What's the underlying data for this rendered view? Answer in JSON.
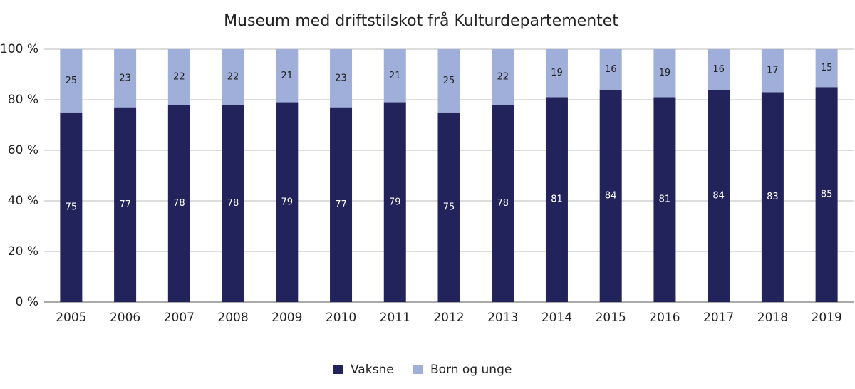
{
  "chart_data": {
    "type": "stacked-bar",
    "title": "Museum med driftstilskot frå Kulturdepartementet",
    "categories": [
      "2005",
      "2006",
      "2007",
      "2008",
      "2009",
      "2010",
      "2011",
      "2012",
      "2013",
      "2014",
      "2015",
      "2016",
      "2017",
      "2018",
      "2019"
    ],
    "series": [
      {
        "name": "Vaksne",
        "color": "#23235b",
        "values": [
          75,
          77,
          78,
          78,
          79,
          77,
          79,
          75,
          78,
          81,
          84,
          81,
          84,
          83,
          85
        ]
      },
      {
        "name": "Born og unge",
        "color": "#9fafd9",
        "values": [
          25,
          23,
          22,
          22,
          21,
          23,
          21,
          25,
          22,
          19,
          16,
          19,
          16,
          17,
          15
        ]
      }
    ],
    "ylim": [
      0,
      100
    ],
    "yticks": [
      {
        "value": 0,
        "label": "0 %"
      },
      {
        "value": 20,
        "label": "20 %"
      },
      {
        "value": 40,
        "label": "40 %"
      },
      {
        "value": 60,
        "label": "60 %"
      },
      {
        "value": 80,
        "label": "80 %"
      },
      {
        "value": 100,
        "label": "100 %"
      }
    ],
    "grid": true,
    "legend": "bottom"
  }
}
